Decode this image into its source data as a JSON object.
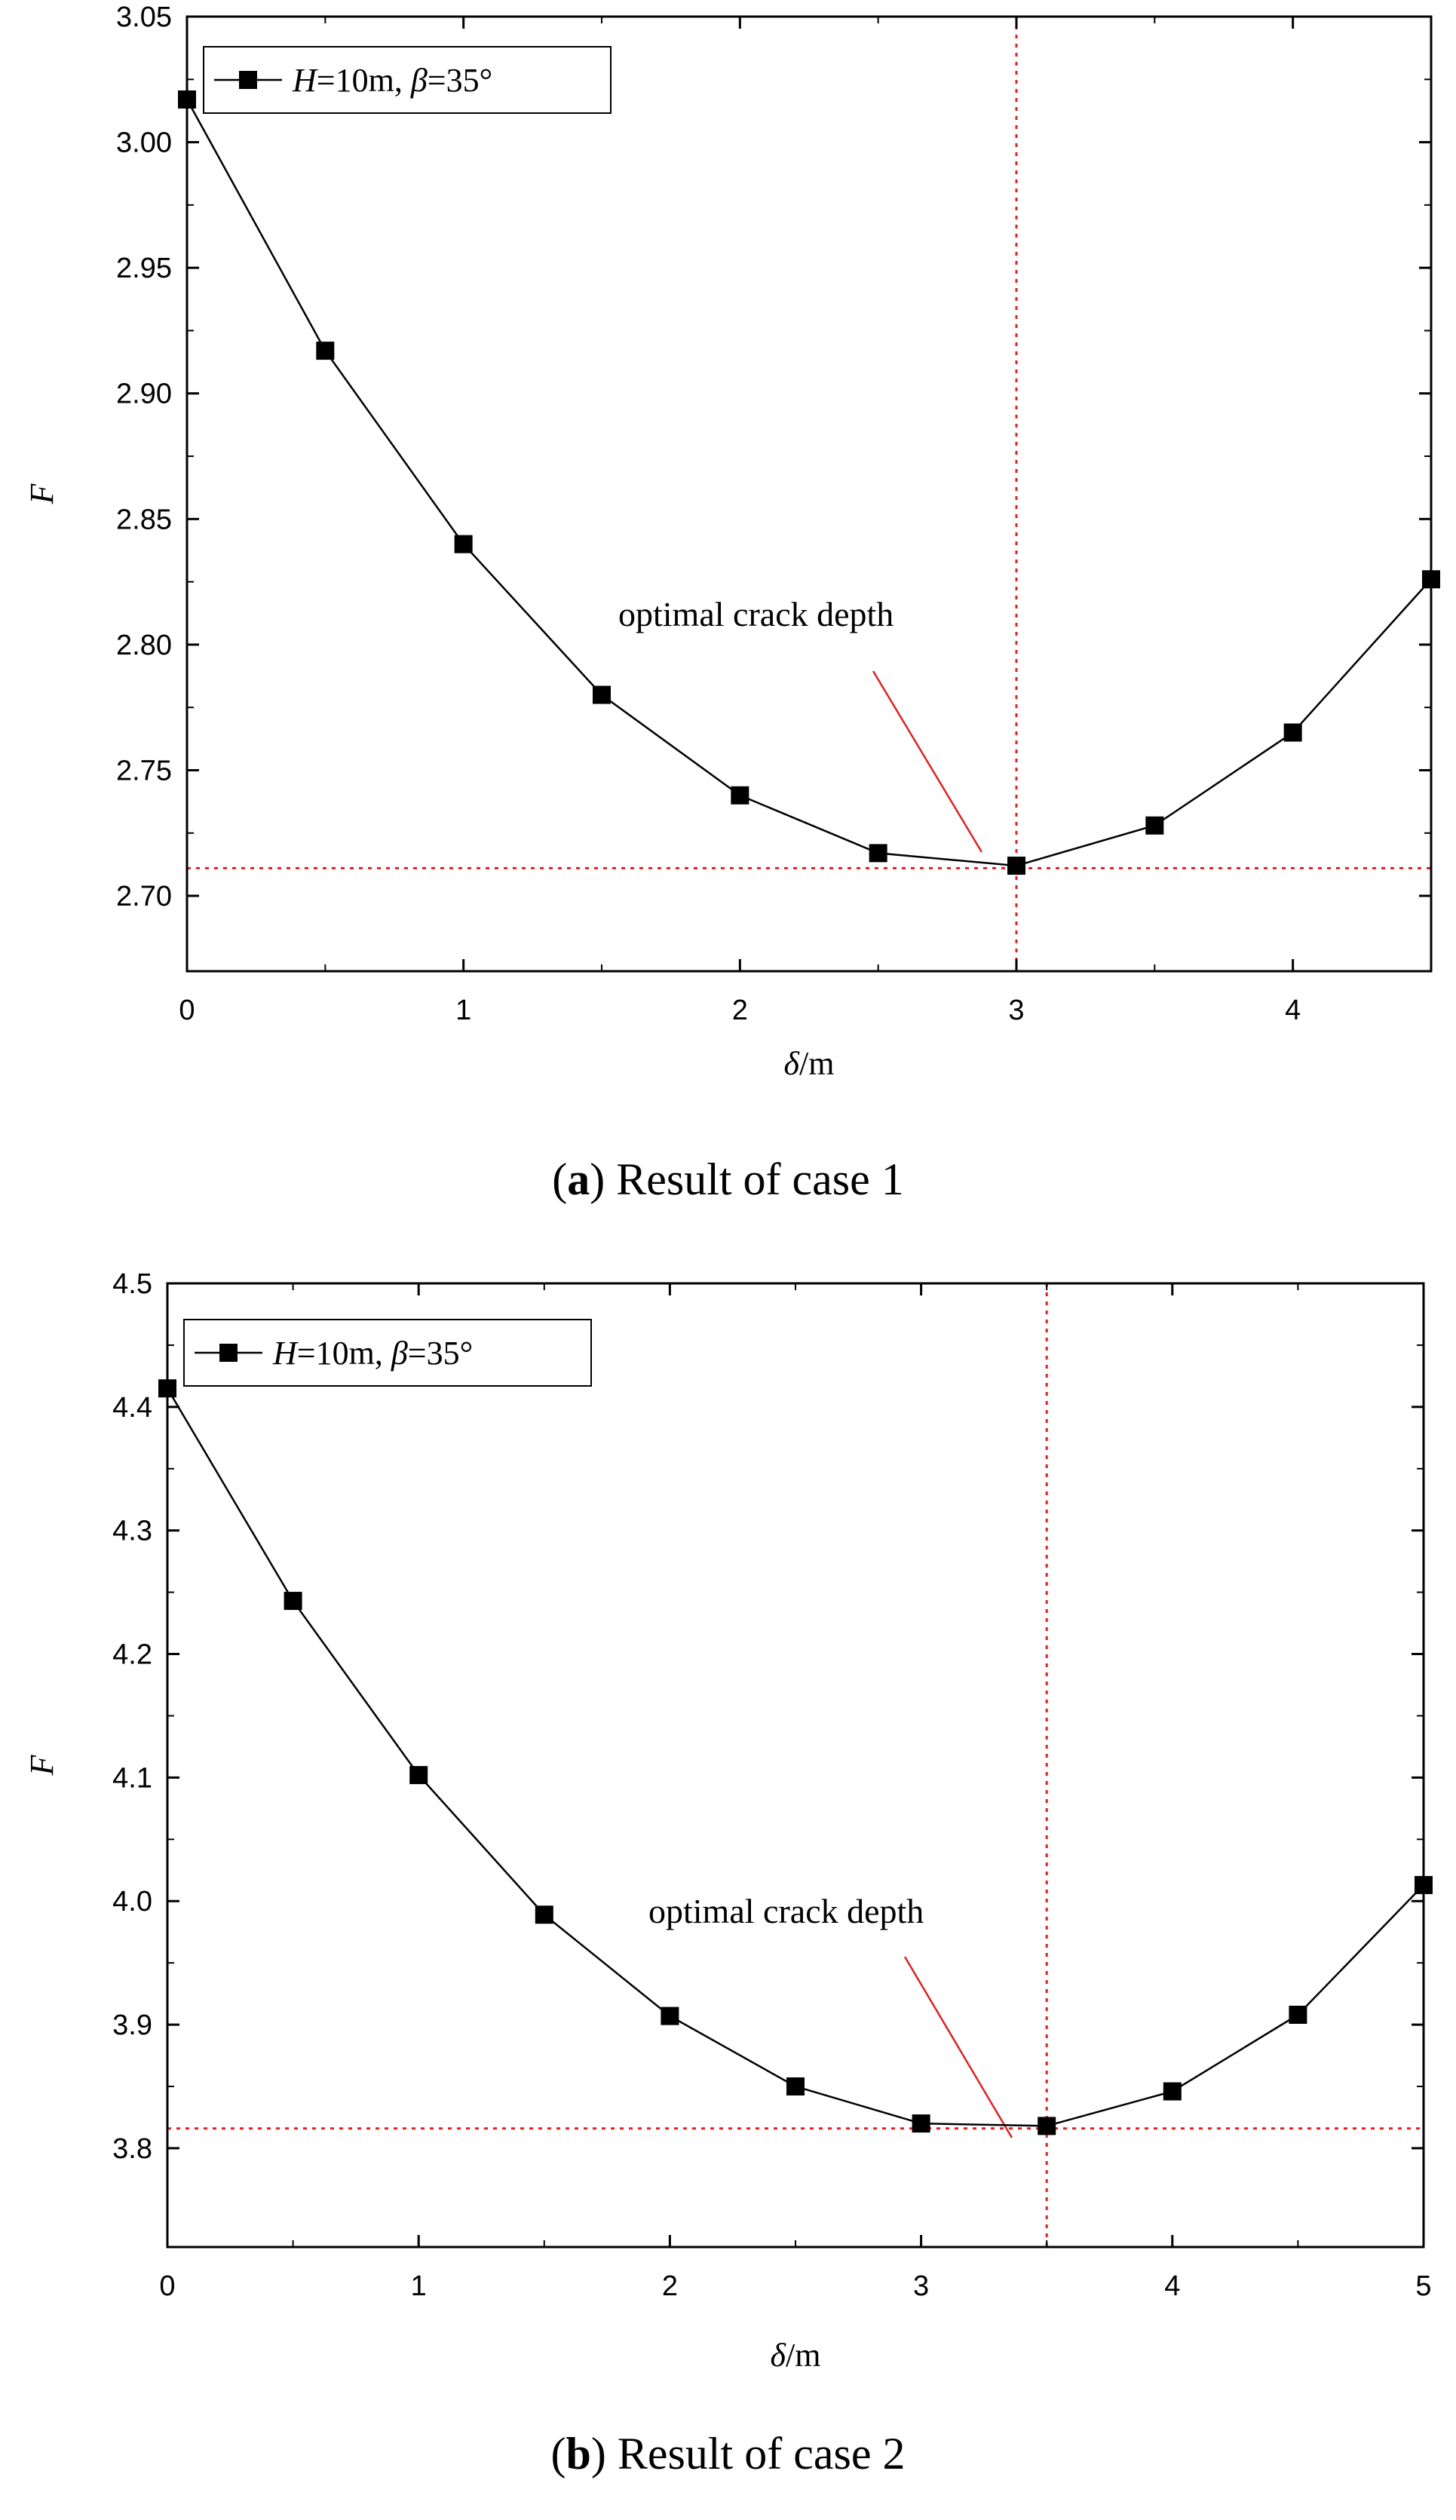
{
  "chart_data": [
    {
      "type": "line",
      "caption": {
        "letter": "a",
        "text": "Result of case 1"
      },
      "xlabel": {
        "symbol": "δ",
        "unit": "/m"
      },
      "ylabel": "F",
      "xlim": [
        0,
        4.5
      ],
      "ylim": [
        2.67,
        3.05
      ],
      "xticks": [
        0,
        1,
        2,
        3,
        4
      ],
      "xtick_labels": [
        "0",
        "1",
        "2",
        "3",
        "4"
      ],
      "yticks": [
        2.7,
        2.75,
        2.8,
        2.85,
        2.9,
        2.95,
        3.0,
        3.05
      ],
      "ytick_labels": [
        "2.70",
        "2.75",
        "2.80",
        "2.85",
        "2.90",
        "2.95",
        "3.00",
        "3.05"
      ],
      "series": [
        {
          "name": "H=10m, β=35°",
          "x": [
            0,
            0.5,
            1.0,
            1.5,
            2.0,
            2.5,
            3.0,
            3.5,
            4.0,
            4.5
          ],
          "y": [
            3.017,
            2.917,
            2.84,
            2.78,
            2.74,
            2.717,
            2.712,
            2.728,
            2.765,
            2.826
          ],
          "color": "#000000"
        }
      ],
      "legend": {
        "position": "top-left",
        "H_label": "H",
        "H_value": "=10m, ",
        "beta_label": "β",
        "beta_value": "=35°"
      },
      "reference_lines": {
        "x": 3.0,
        "y": 2.711,
        "color": "#dd2222"
      },
      "annotation": {
        "text": "optimal crack depth",
        "point": [
          3.0,
          2.712
        ]
      }
    },
    {
      "type": "line",
      "caption": {
        "letter": "b",
        "text": "Result of case 2"
      },
      "xlabel": {
        "symbol": "δ",
        "unit": "/m"
      },
      "ylabel": "F",
      "xlim": [
        0,
        5
      ],
      "ylim": [
        3.72,
        4.5
      ],
      "xticks": [
        0,
        1,
        2,
        3,
        4,
        5
      ],
      "xtick_labels": [
        "0",
        "1",
        "2",
        "3",
        "4",
        "5"
      ],
      "yticks": [
        3.8,
        3.9,
        4.0,
        4.1,
        4.2,
        4.3,
        4.4,
        4.5
      ],
      "ytick_labels": [
        "3.8",
        "3.9",
        "4.0",
        "4.1",
        "4.2",
        "4.3",
        "4.4",
        "4.5"
      ],
      "series": [
        {
          "name": "H=10m, β=35°",
          "x": [
            0,
            0.5,
            1.0,
            1.5,
            2.0,
            2.5,
            3.0,
            3.5,
            4.0,
            4.5,
            5.0
          ],
          "y": [
            4.415,
            4.243,
            4.102,
            3.989,
            3.907,
            3.85,
            3.82,
            3.818,
            3.846,
            3.908,
            4.013
          ],
          "color": "#000000"
        }
      ],
      "legend": {
        "position": "top-left",
        "H_label": "H",
        "H_value": "=10m, ",
        "beta_label": "β",
        "beta_value": "=35°"
      },
      "reference_lines": {
        "x": 3.5,
        "y": 3.816,
        "color": "#dd2222"
      },
      "annotation": {
        "text": "optimal crack depth",
        "point": [
          3.5,
          3.818
        ]
      }
    }
  ]
}
